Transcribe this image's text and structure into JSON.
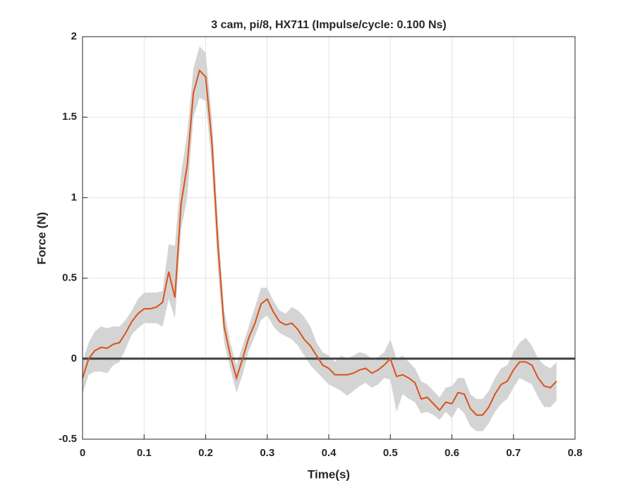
{
  "chart_data": {
    "type": "line",
    "title": "3 cam, pi/8, HX711 (Impulse/cycle: 0.100 Ns)",
    "xlabel": "Time(s)",
    "ylabel": "Force (N)",
    "x": [
      0,
      0.01,
      0.02,
      0.03,
      0.04,
      0.05,
      0.06,
      0.07,
      0.08,
      0.09,
      0.1,
      0.11,
      0.12,
      0.13,
      0.14,
      0.15,
      0.16,
      0.17,
      0.18,
      0.19,
      0.2,
      0.21,
      0.22,
      0.23,
      0.24,
      0.25,
      0.26,
      0.27,
      0.28,
      0.29,
      0.3,
      0.31,
      0.32,
      0.33,
      0.34,
      0.35,
      0.36,
      0.37,
      0.38,
      0.39,
      0.4,
      0.41,
      0.42,
      0.43,
      0.44,
      0.45,
      0.46,
      0.47,
      0.48,
      0.49,
      0.5,
      0.51,
      0.52,
      0.53,
      0.54,
      0.55,
      0.56,
      0.57,
      0.58,
      0.59,
      0.6,
      0.61,
      0.62,
      0.63,
      0.64,
      0.65,
      0.66,
      0.67,
      0.68,
      0.69,
      0.7,
      0.71,
      0.72,
      0.73,
      0.74,
      0.75,
      0.76,
      0.77
    ],
    "series": [
      {
        "color": "#d95319",
        "band_color": "#d4d4d4",
        "values": [
          -0.12,
          0,
          0.05,
          0.07,
          0.065,
          0.09,
          0.1,
          0.16,
          0.23,
          0.28,
          0.31,
          0.31,
          0.32,
          0.35,
          0.54,
          0.38,
          0.96,
          1.2,
          1.65,
          1.79,
          1.75,
          1.35,
          0.7,
          0.2,
          0.02,
          -0.12,
          0,
          0.13,
          0.22,
          0.34,
          0.37,
          0.29,
          0.23,
          0.21,
          0.22,
          0.18,
          0.12,
          0.08,
          0.02,
          -0.04,
          -0.06,
          -0.1,
          -0.1,
          -0.1,
          -0.09,
          -0.07,
          -0.06,
          -0.09,
          -0.07,
          -0.04,
          0,
          -0.11,
          -0.1,
          -0.12,
          -0.15,
          -0.25,
          -0.24,
          -0.28,
          -0.32,
          -0.27,
          -0.28,
          -0.21,
          -0.22,
          -0.31,
          -0.35,
          -0.35,
          -0.3,
          -0.22,
          -0.16,
          -0.14,
          -0.07,
          -0.02,
          -0.02,
          -0.04,
          -0.12,
          -0.17,
          -0.18,
          -0.14
        ],
        "upper": [
          -0.02,
          0.1,
          0.17,
          0.2,
          0.19,
          0.2,
          0.2,
          0.24,
          0.3,
          0.37,
          0.41,
          0.41,
          0.41,
          0.42,
          0.71,
          0.7,
          1.15,
          1.4,
          1.8,
          1.94,
          1.9,
          1.5,
          0.85,
          0.3,
          0.1,
          -0.04,
          0.08,
          0.2,
          0.32,
          0.44,
          0.44,
          0.36,
          0.3,
          0.28,
          0.32,
          0.3,
          0.26,
          0.2,
          0.1,
          0.04,
          0.02,
          -0.02,
          0.02,
          0.0,
          0.02,
          0.04,
          0.03,
          0.0,
          0.01,
          0.04,
          0.12,
          0.0,
          0.02,
          -0.02,
          -0.06,
          -0.14,
          -0.16,
          -0.2,
          -0.24,
          -0.18,
          -0.17,
          -0.12,
          -0.12,
          -0.22,
          -0.25,
          -0.25,
          -0.2,
          -0.12,
          -0.06,
          -0.04,
          0.04,
          0.1,
          0.13,
          0.08,
          0.0,
          -0.04,
          -0.06,
          -0.02
        ],
        "lower": [
          -0.22,
          -0.1,
          -0.08,
          -0.08,
          -0.09,
          -0.04,
          -0.02,
          0.06,
          0.15,
          0.19,
          0.22,
          0.22,
          0.22,
          0.2,
          0.37,
          0.25,
          0.8,
          1.0,
          1.5,
          1.62,
          1.6,
          1.2,
          0.55,
          0.1,
          -0.06,
          -0.21,
          -0.1,
          0.05,
          0.14,
          0.24,
          0.27,
          0.2,
          0.16,
          0.14,
          0.12,
          0.08,
          0.02,
          -0.04,
          -0.08,
          -0.12,
          -0.16,
          -0.18,
          -0.2,
          -0.23,
          -0.2,
          -0.17,
          -0.15,
          -0.18,
          -0.16,
          -0.12,
          -0.13,
          -0.33,
          -0.22,
          -0.25,
          -0.27,
          -0.34,
          -0.33,
          -0.35,
          -0.38,
          -0.33,
          -0.37,
          -0.3,
          -0.34,
          -0.42,
          -0.45,
          -0.45,
          -0.4,
          -0.33,
          -0.28,
          -0.25,
          -0.18,
          -0.12,
          -0.14,
          -0.16,
          -0.24,
          -0.3,
          -0.3,
          -0.26
        ]
      }
    ],
    "reference_line": {
      "value": 0,
      "color": "#404040"
    },
    "xlim": [
      0,
      0.8
    ],
    "ylim": [
      -0.5,
      2
    ],
    "xticks": [
      0,
      0.1,
      0.2,
      0.3,
      0.4,
      0.5,
      0.6,
      0.7,
      0.8
    ],
    "yticks": [
      -0.5,
      0,
      0.5,
      1,
      1.5,
      2
    ],
    "grid": true
  }
}
